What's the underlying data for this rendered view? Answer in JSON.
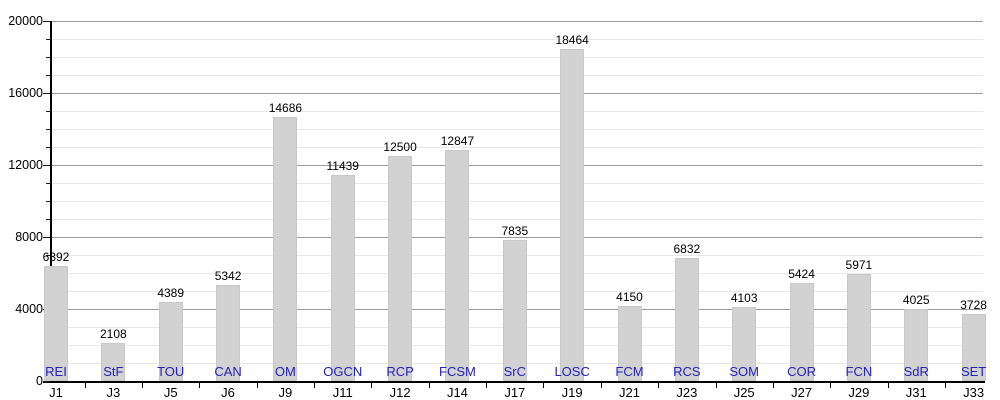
{
  "chart_data": {
    "type": "bar",
    "title": "",
    "xlabel": "",
    "ylabel": "",
    "categories": [
      "J1",
      "J3",
      "J5",
      "J6",
      "J9",
      "J11",
      "J12",
      "J14",
      "J17",
      "J19",
      "J21",
      "J23",
      "J25",
      "J27",
      "J29",
      "J31",
      "J33"
    ],
    "bar_labels": [
      "REI",
      "StF",
      "TOU",
      "CAN",
      "OM",
      "OGCN",
      "RCP",
      "FCSM",
      "SrC",
      "LOSC",
      "FCM",
      "RCS",
      "SOM",
      "COR",
      "FCN",
      "SdR",
      "SET"
    ],
    "values": [
      6392,
      2108,
      4389,
      5342,
      14686,
      11439,
      12500,
      12847,
      7835,
      18464,
      4150,
      6832,
      4103,
      5424,
      5971,
      4025,
      3728
    ],
    "ylim": [
      0,
      20000
    ],
    "y_major_ticks": [
      0,
      4000,
      8000,
      12000,
      16000,
      20000
    ],
    "y_minor_step": 1000,
    "grid": "horizontal; minor line every 1000, major line every 4000",
    "legend": "none",
    "value_labels_position": "above bars, black",
    "bar_name_labels_position": "at bar base above x-axis, blue",
    "colors": {
      "bar_fill": "#d2d2d2",
      "bar_edge": "#c8c8c8",
      "club_label": "#2222bb",
      "value_label": "#000000",
      "axis": "#000000",
      "minor_grid": "#e8e8e8",
      "major_grid": "#9a9a9a",
      "background": "#ffffff"
    }
  }
}
